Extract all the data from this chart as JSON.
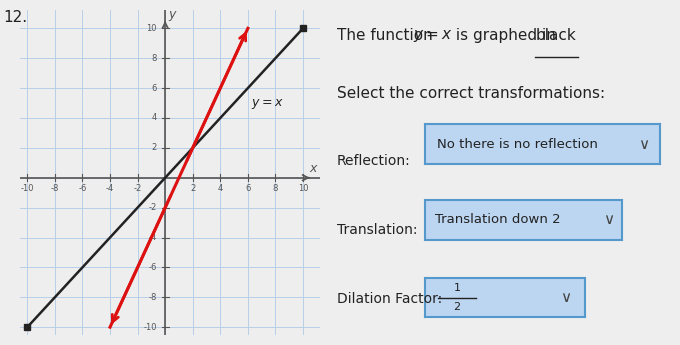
{
  "question_number": "12.",
  "bg_color": "#eeeeee",
  "grid_color": "#b8cfe8",
  "axis_color": "#555555",
  "black_line_color": "#222222",
  "red_line_color": "#dd1111",
  "x_min": -10,
  "x_max": 10,
  "y_min": -10,
  "y_max": 10,
  "black_slope": 1,
  "black_intercept": 0,
  "red_slope": 2,
  "red_intercept": -2,
  "reflection_value": "No there is no reflection",
  "translation_value": "Translation down 2",
  "dropdown_bg": "#bcd5f0",
  "dropdown_border": "#5599cc",
  "text_color": "#222222",
  "font_size_title": 11,
  "font_size_labels": 10,
  "font_size_dropdown": 9.5
}
